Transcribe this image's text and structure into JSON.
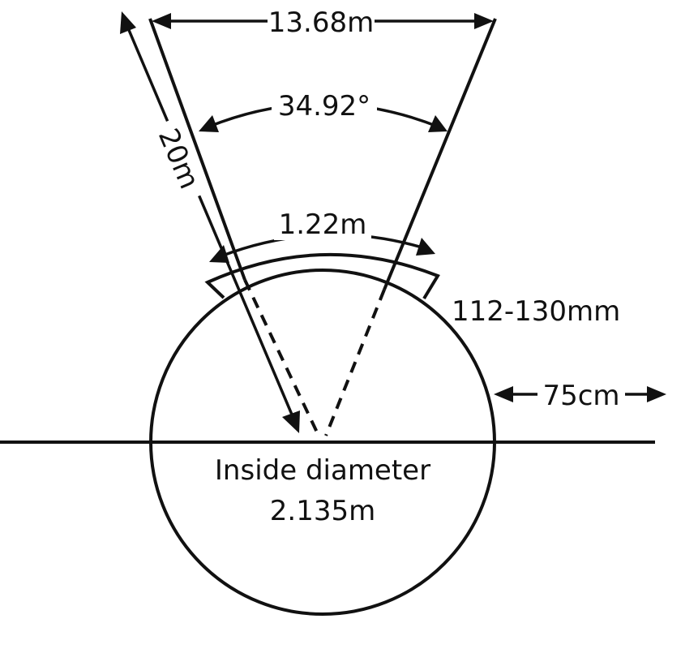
{
  "diagram": {
    "labels": {
      "sector_width": "13.68m",
      "sector_angle": "34.92°",
      "radius": "20m",
      "arc_width": "1.22m",
      "toe_board_height": "112-130mm",
      "margin": "75cm",
      "inside_diameter_line1": "Inside diameter",
      "inside_diameter_line2": "2.135m"
    },
    "colors": {
      "ink": "#111111",
      "background": "#ffffff"
    }
  }
}
